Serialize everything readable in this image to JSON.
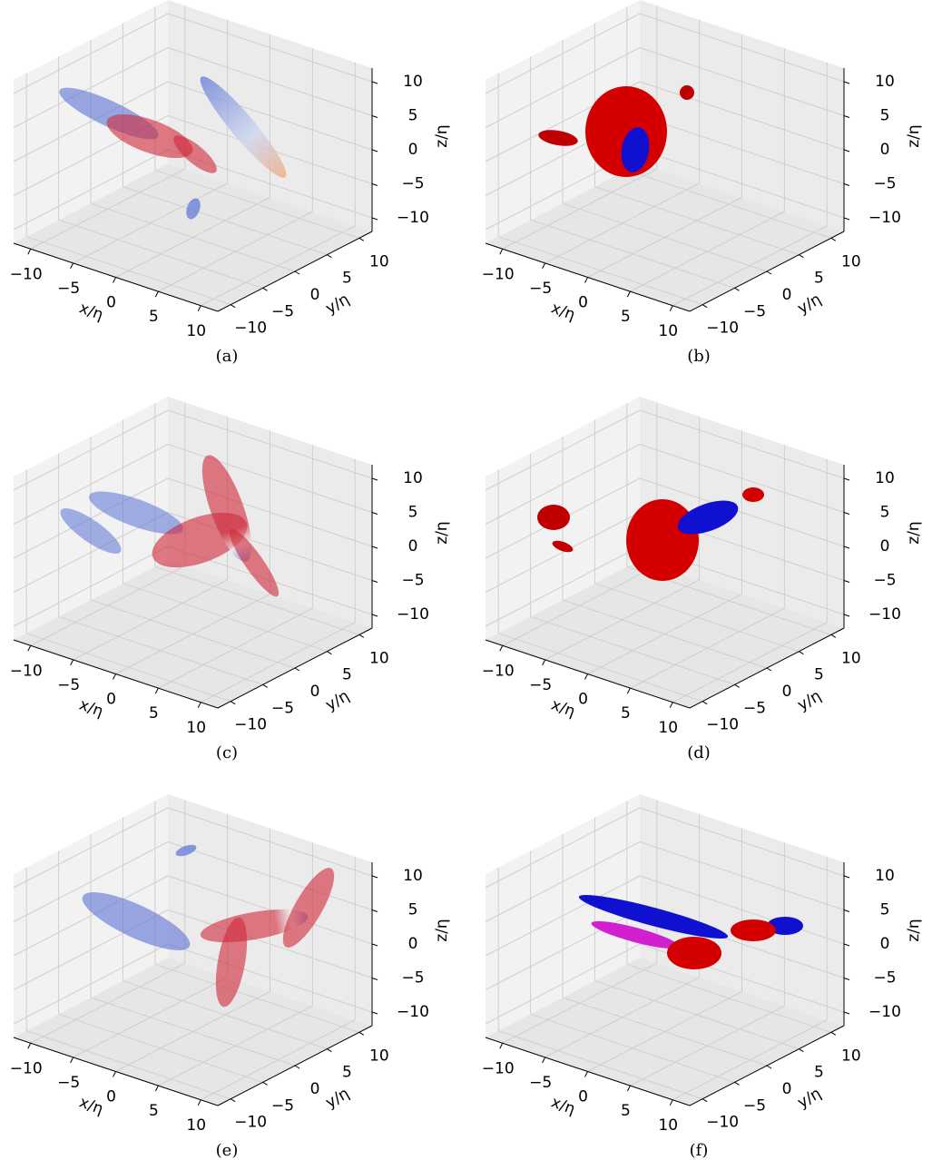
{
  "panels": [
    {
      "caption": "(a)",
      "x_label": "x/η",
      "y_label": "y/η",
      "z_label": "z/η",
      "xlim": [
        -12,
        12
      ],
      "ylim": [
        -12,
        12
      ],
      "zlim": [
        -12,
        12
      ],
      "xticks": [
        {
          "value": -10,
          "label": "−10"
        },
        {
          "value": -5,
          "label": "−5"
        },
        0,
        5,
        10
      ],
      "yticks": [
        {
          "value": -10,
          "label": "−10"
        },
        {
          "value": -5,
          "label": "−5"
        },
        0,
        5,
        10
      ],
      "zticks": [
        {
          "value": -10,
          "label": "−10"
        },
        {
          "value": -5,
          "label": "−5"
        },
        0,
        5,
        10
      ]
    },
    {
      "caption": "(b)",
      "x_label": "x/η",
      "y_label": "y/η",
      "z_label": "z/η",
      "xlim": [
        -12,
        12
      ],
      "ylim": [
        -12,
        12
      ],
      "zlim": [
        -12,
        12
      ],
      "xticks": [
        {
          "value": -10,
          "label": "−10"
        },
        {
          "value": -5,
          "label": "−5"
        },
        0,
        5,
        10
      ],
      "yticks": [
        {
          "value": -10,
          "label": "−10"
        },
        {
          "value": -5,
          "label": "−5"
        },
        0,
        5,
        10
      ],
      "zticks": [
        {
          "value": -10,
          "label": "−10"
        },
        {
          "value": -5,
          "label": "−5"
        },
        0,
        5,
        10
      ]
    },
    {
      "caption": "(c)",
      "x_label": "x/η",
      "y_label": "y/η",
      "z_label": "z/η",
      "xlim": [
        -12,
        12
      ],
      "ylim": [
        -12,
        12
      ],
      "zlim": [
        -12,
        12
      ],
      "xticks": [
        {
          "value": -10,
          "label": "−10"
        },
        {
          "value": -5,
          "label": "−5"
        },
        0,
        5,
        10
      ],
      "yticks": [
        {
          "value": -10,
          "label": "−10"
        },
        {
          "value": -5,
          "label": "−5"
        },
        0,
        5,
        10
      ],
      "zticks": [
        {
          "value": -10,
          "label": "−10"
        },
        {
          "value": -5,
          "label": "−5"
        },
        0,
        5,
        10
      ]
    },
    {
      "caption": "(d)",
      "x_label": "x/η",
      "y_label": "y/η",
      "z_label": "z/η",
      "xlim": [
        -12,
        12
      ],
      "ylim": [
        -12,
        12
      ],
      "zlim": [
        -12,
        12
      ],
      "xticks": [
        {
          "value": -10,
          "label": "−10"
        },
        {
          "value": -5,
          "label": "−5"
        },
        0,
        5,
        10
      ],
      "yticks": [
        {
          "value": -10,
          "label": "−10"
        },
        {
          "value": -5,
          "label": "−5"
        },
        0,
        5,
        10
      ],
      "zticks": [
        {
          "value": -10,
          "label": "−10"
        },
        {
          "value": -5,
          "label": "−5"
        },
        0,
        5,
        10
      ]
    },
    {
      "caption": "(e)",
      "x_label": "x/η",
      "y_label": "y/η",
      "z_label": "z/η",
      "xlim": [
        -12,
        12
      ],
      "ylim": [
        -12,
        12
      ],
      "zlim": [
        -12,
        12
      ],
      "xticks": [
        {
          "value": -10,
          "label": "−10"
        },
        {
          "value": -5,
          "label": "−5"
        },
        0,
        5,
        10
      ],
      "yticks": [
        {
          "value": -10,
          "label": "−10"
        },
        {
          "value": -5,
          "label": "−5"
        },
        0,
        5,
        10
      ],
      "zticks": [
        {
          "value": -10,
          "label": "−10"
        },
        {
          "value": -5,
          "label": "−5"
        },
        0,
        5,
        10
      ]
    },
    {
      "caption": "(f)",
      "x_label": "x/η",
      "y_label": "y/η",
      "z_label": "z/η",
      "xlim": [
        -12,
        12
      ],
      "ylim": [
        -12,
        12
      ],
      "zlim": [
        -12,
        12
      ],
      "xticks": [
        {
          "value": -10,
          "label": "−10"
        },
        {
          "value": -5,
          "label": "−5"
        },
        0,
        5,
        10
      ],
      "yticks": [
        {
          "value": -10,
          "label": "−10"
        },
        {
          "value": -5,
          "label": "−5"
        },
        0,
        5,
        10
      ],
      "zticks": [
        {
          "value": -10,
          "label": "−10"
        },
        {
          "value": -5,
          "label": "−5"
        },
        0,
        5,
        10
      ]
    }
  ]
}
